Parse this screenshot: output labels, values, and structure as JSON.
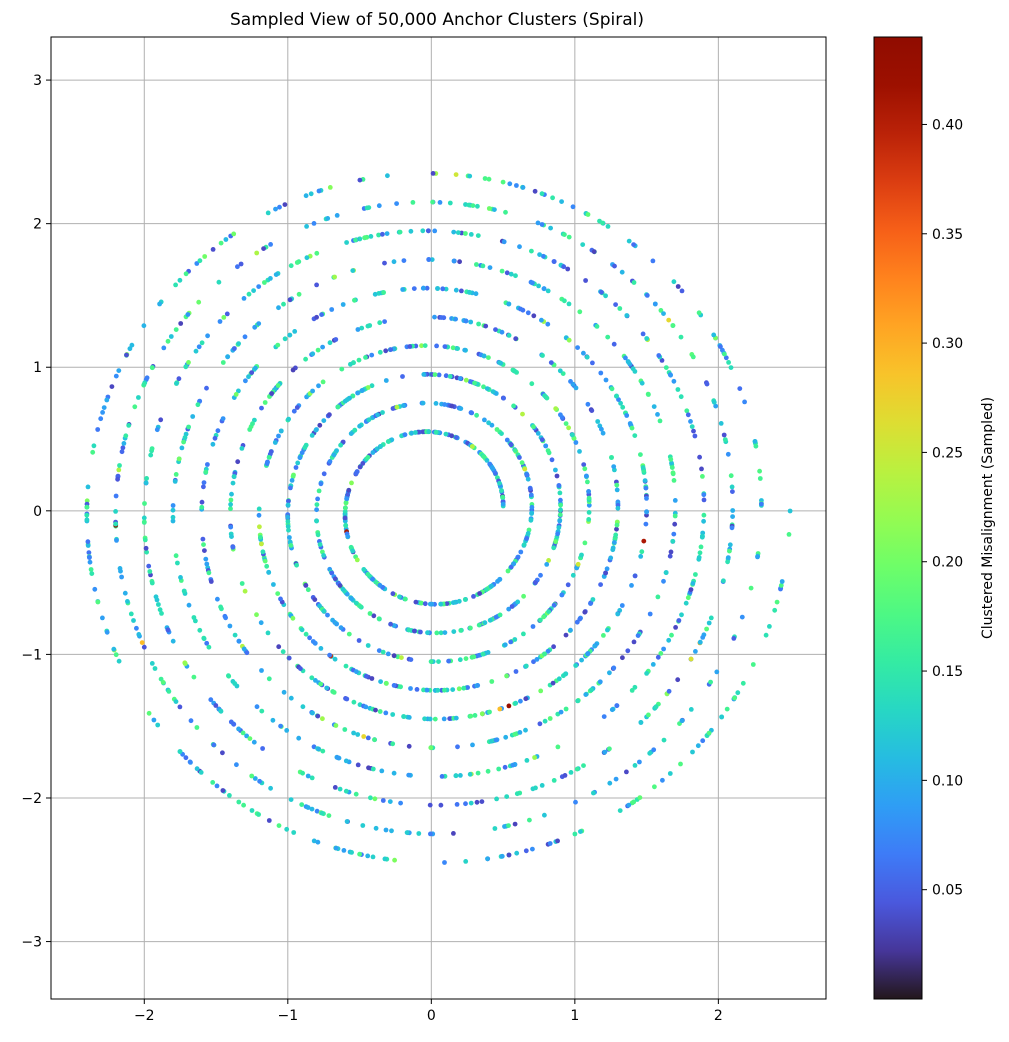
{
  "chart_data": {
    "type": "scatter",
    "title": "Sampled View of 50,000 Anchor Clusters (Spiral)",
    "xlabel": "",
    "ylabel": "",
    "xlim": [
      -2.65,
      2.75
    ],
    "ylim": [
      -3.4,
      3.3
    ],
    "x_ticks": [
      -2,
      -1,
      0,
      1,
      2
    ],
    "y_ticks": [
      -3,
      -2,
      -1,
      0,
      1,
      2,
      3
    ],
    "grid": true,
    "colormap": "turbo",
    "colorbar": {
      "label": "Clustered Misalignment (Sampled)",
      "range": [
        0.0,
        0.44
      ],
      "ticks": [
        0.05,
        0.1,
        0.15,
        0.2,
        0.25,
        0.3,
        0.35,
        0.4
      ]
    },
    "spiral": {
      "description_values": "points lie on an Archimedean spiral r = r0 + b*theta",
      "r_start": 0.5,
      "r_end": 2.5,
      "turns": 10,
      "sample_count": 2200,
      "color_value_typical": [
        0.03,
        0.18
      ],
      "color_value_max": 0.43
    }
  }
}
